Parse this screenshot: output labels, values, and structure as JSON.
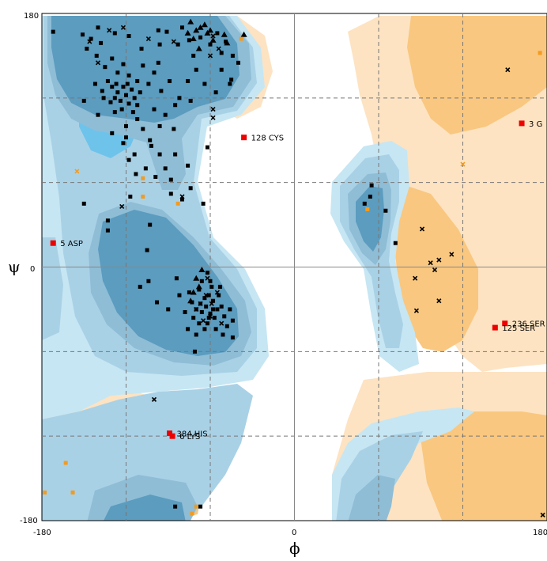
{
  "chart_data": {
    "type": "scatter",
    "xlabel": "ϕ",
    "ylabel": "ψ",
    "xlim": [
      -180,
      180
    ],
    "ylim": [
      -180,
      180
    ],
    "x_ticks": [
      "-180",
      "0",
      "180"
    ],
    "y_ticks": [
      "180",
      "0",
      "-180"
    ],
    "grid": true,
    "colors": {
      "core_dark": "#5b9cbf",
      "core_mid": "#8fbdd6",
      "allowed": "#a9d1e6",
      "generous": "#c6e6f3",
      "bright_core": "#6ec3ea",
      "orange_dark": "#f9c77f",
      "orange_light": "#fde3c2",
      "general": "#000000",
      "outlier": "#ee0000",
      "gly_pro": "#f39b1f"
    },
    "labeled_residues": [
      {
        "label": "128 CYS",
        "phi": -36,
        "psi": 92
      },
      {
        "label": "5 ASP",
        "phi": -172,
        "psi": 17
      },
      {
        "label": "3 G",
        "phi": 162,
        "psi": 102
      },
      {
        "label": "236 SER",
        "phi": 150,
        "psi": -40
      },
      {
        "label": "125 SER",
        "phi": 143,
        "psi": -43
      },
      {
        "label": "384 HIS",
        "phi": -89,
        "psi": -118
      },
      {
        "label": "6 LYS",
        "phi": -87,
        "psi": -120
      }
    ],
    "general_squares": [
      [
        -172,
        167
      ],
      [
        -151,
        165
      ],
      [
        -145,
        162
      ],
      [
        -138,
        159
      ],
      [
        -128,
        166
      ],
      [
        -118,
        164
      ],
      [
        -109,
        155
      ],
      [
        -97,
        168
      ],
      [
        -91,
        167
      ],
      [
        -83,
        158
      ],
      [
        -75,
        161
      ],
      [
        -67,
        163
      ],
      [
        -60,
        158
      ],
      [
        -55,
        166
      ],
      [
        -52,
        152
      ],
      [
        -49,
        160
      ],
      [
        -40,
        145
      ],
      [
        -45,
        133
      ],
      [
        -148,
        155
      ],
      [
        -141,
        150
      ],
      [
        -135,
        142
      ],
      [
        -130,
        148
      ],
      [
        -126,
        138
      ],
      [
        -122,
        144
      ],
      [
        -118,
        136
      ],
      [
        -112,
        132
      ],
      [
        -108,
        143
      ],
      [
        -104,
        130
      ],
      [
        -100,
        138
      ],
      [
        -95,
        125
      ],
      [
        -89,
        132
      ],
      [
        -82,
        120
      ],
      [
        -76,
        132
      ],
      [
        -70,
        140
      ],
      [
        -64,
        130
      ],
      [
        -56,
        124
      ],
      [
        -52,
        140
      ],
      [
        -46,
        130
      ],
      [
        -44,
        150
      ],
      [
        -142,
        130
      ],
      [
        -137,
        125
      ],
      [
        -133,
        132
      ],
      [
        -130,
        128
      ],
      [
        -128,
        120
      ],
      [
        -126,
        124
      ],
      [
        -124,
        118
      ],
      [
        -122,
        128
      ],
      [
        -120,
        122
      ],
      [
        -118,
        116
      ],
      [
        -116,
        126
      ],
      [
        -114,
        120
      ],
      [
        -112,
        115
      ],
      [
        -110,
        124
      ],
      [
        -136,
        120
      ],
      [
        -131,
        117
      ],
      [
        -127,
        130
      ],
      [
        -123,
        112
      ],
      [
        -119,
        130
      ],
      [
        -115,
        110
      ],
      [
        -128,
        110
      ],
      [
        -112,
        105
      ],
      [
        -100,
        112
      ],
      [
        -92,
        108
      ],
      [
        -85,
        115
      ],
      [
        -74,
        118
      ],
      [
        -108,
        98
      ],
      [
        -96,
        100
      ],
      [
        -140,
        108
      ],
      [
        -150,
        118
      ],
      [
        -120,
        100
      ],
      [
        -86,
        98
      ],
      [
        -102,
        86
      ],
      [
        -96,
        80
      ],
      [
        -92,
        70
      ],
      [
        -88,
        62
      ],
      [
        -85,
        80
      ],
      [
        -130,
        95
      ],
      [
        -120,
        92
      ],
      [
        -76,
        72
      ],
      [
        -118,
        76
      ],
      [
        -122,
        88
      ],
      [
        -114,
        80
      ],
      [
        -106,
        70
      ],
      [
        -99,
        64
      ],
      [
        -88,
        52
      ],
      [
        -80,
        48
      ],
      [
        -74,
        56
      ],
      [
        -103,
        90
      ],
      [
        -62,
        85
      ],
      [
        -65,
        45
      ],
      [
        -150,
        45
      ],
      [
        -133,
        26
      ],
      [
        -133,
        33
      ],
      [
        -105,
        12
      ],
      [
        -113,
        66
      ],
      [
        -117,
        50
      ],
      [
        -103,
        30
      ],
      [
        -104,
        -10
      ],
      [
        -71,
        -60
      ],
      [
        -60,
        -10
      ],
      [
        -61,
        -20
      ],
      [
        -64,
        -22
      ],
      [
        -67,
        -26
      ],
      [
        -58,
        -24
      ],
      [
        -55,
        -30
      ],
      [
        -63,
        -28
      ],
      [
        -66,
        -32
      ],
      [
        -60,
        -33
      ],
      [
        -57,
        -36
      ],
      [
        -52,
        -28
      ],
      [
        -70,
        -30
      ],
      [
        -73,
        -25
      ],
      [
        -50,
        -35
      ],
      [
        -68,
        -40
      ],
      [
        -62,
        -40
      ],
      [
        -56,
        -44
      ],
      [
        -48,
        -42
      ],
      [
        -72,
        -36
      ],
      [
        -75,
        -18
      ],
      [
        -59,
        -14
      ],
      [
        -54,
        -20
      ],
      [
        -46,
        -30
      ],
      [
        -66,
        -10
      ],
      [
        -62,
        -4
      ],
      [
        -68,
        -16
      ],
      [
        -58,
        -30
      ],
      [
        -61,
        -36
      ],
      [
        -64,
        -44
      ],
      [
        -51,
        -48
      ],
      [
        -78,
        -32
      ],
      [
        -82,
        -20
      ],
      [
        -53,
        -14
      ],
      [
        -44,
        -38
      ],
      [
        -70,
        -48
      ],
      [
        -76,
        -44
      ],
      [
        -110,
        -14
      ],
      [
        -84,
        -8
      ],
      [
        -90,
        -30
      ],
      [
        -44,
        -50
      ],
      [
        -98,
        -25
      ],
      [
        -85,
        -170
      ],
      [
        -67,
        -170
      ],
      [
        -96,
        158
      ],
      [
        -97,
        145
      ],
      [
        -72,
        150
      ],
      [
        -80,
        170
      ],
      [
        -140,
        170
      ],
      [
        55,
        58
      ],
      [
        65,
        40
      ],
      [
        72,
        17
      ],
      [
        54,
        50
      ],
      [
        50,
        45
      ]
    ],
    "general_triangles": [
      [
        -74,
        174
      ],
      [
        -70,
        168
      ],
      [
        -67,
        170
      ],
      [
        -64,
        172
      ],
      [
        -76,
        166
      ],
      [
        -72,
        162
      ],
      [
        -60,
        168
      ],
      [
        -58,
        161
      ],
      [
        -50,
        165
      ],
      [
        -68,
        155
      ],
      [
        -62,
        166
      ],
      [
        -48,
        159
      ],
      [
        -36,
        165
      ],
      [
        -70,
        -8
      ],
      [
        -68,
        -14
      ],
      [
        -72,
        -18
      ],
      [
        -66,
        -2
      ],
      [
        -74,
        -24
      ]
    ],
    "general_crosses": [
      [
        -146,
        160
      ],
      [
        -140,
        145
      ],
      [
        -132,
        168
      ],
      [
        -122,
        170
      ],
      [
        -104,
        162
      ],
      [
        -86,
        160
      ],
      [
        -60,
        150
      ],
      [
        -58,
        164
      ],
      [
        -54,
        155
      ],
      [
        -58,
        112
      ],
      [
        -58,
        106
      ],
      [
        -80,
        50
      ],
      [
        -123,
        43
      ],
      [
        -100,
        -94
      ],
      [
        -63,
        -20
      ],
      [
        -67,
        -26
      ],
      [
        -59,
        -26
      ],
      [
        -60,
        -35
      ],
      [
        -55,
        -18
      ],
      [
        -65,
        -38
      ],
      [
        -70,
        -30
      ],
      [
        -52,
        -40
      ],
      [
        -62,
        -8
      ],
      [
        91,
        27
      ],
      [
        97,
        3
      ],
      [
        100,
        -2
      ],
      [
        103,
        5
      ],
      [
        112,
        9
      ],
      [
        87,
        -31
      ],
      [
        103,
        -24
      ],
      [
        86,
        -8
      ],
      [
        152,
        140
      ],
      [
        177,
        -176
      ]
    ],
    "glypro_squares": [
      [
        -108,
        63
      ],
      [
        -108,
        50
      ],
      [
        -83,
        45
      ],
      [
        -178,
        -160
      ],
      [
        -158,
        -160
      ],
      [
        -163,
        -139
      ],
      [
        -73,
        -175
      ],
      [
        -70,
        -170
      ],
      [
        52,
        41
      ],
      [
        -38,
        162
      ],
      [
        175,
        152
      ]
    ],
    "glypro_crosses": [
      [
        -155,
        68
      ],
      [
        120,
        73
      ]
    ]
  }
}
